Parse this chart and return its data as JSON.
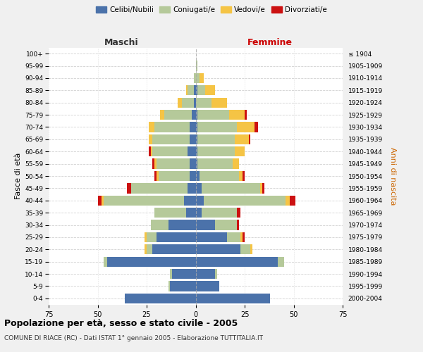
{
  "age_groups_bottom_to_top": [
    "0-4",
    "5-9",
    "10-14",
    "15-19",
    "20-24",
    "25-29",
    "30-34",
    "35-39",
    "40-44",
    "45-49",
    "50-54",
    "55-59",
    "60-64",
    "65-69",
    "70-74",
    "75-79",
    "80-84",
    "85-89",
    "90-94",
    "95-99",
    "100+"
  ],
  "birth_years_bottom_to_top": [
    "2000-2004",
    "1995-1999",
    "1990-1994",
    "1985-1989",
    "1980-1984",
    "1975-1979",
    "1970-1974",
    "1965-1969",
    "1960-1964",
    "1955-1959",
    "1950-1954",
    "1945-1949",
    "1940-1944",
    "1935-1939",
    "1930-1934",
    "1925-1929",
    "1920-1924",
    "1915-1919",
    "1910-1914",
    "1905-1909",
    "≤ 1904"
  ],
  "colors": {
    "celibe": "#4b72aa",
    "coniugato": "#b5c99a",
    "vedovo": "#f5c445",
    "divorziato": "#cc1111"
  },
  "maschi_bottom_to_top": {
    "celibe": [
      36,
      13,
      12,
      45,
      22,
      20,
      14,
      5,
      6,
      4,
      3,
      3,
      4,
      3,
      3,
      2,
      1,
      1,
      0,
      0,
      0
    ],
    "coniugato": [
      0,
      1,
      1,
      2,
      3,
      5,
      9,
      16,
      41,
      29,
      16,
      17,
      18,
      19,
      18,
      14,
      6,
      3,
      1,
      0,
      0
    ],
    "vedovo": [
      0,
      0,
      0,
      0,
      1,
      1,
      0,
      0,
      1,
      0,
      1,
      1,
      1,
      2,
      3,
      2,
      2,
      1,
      0,
      0,
      0
    ],
    "divorziato": [
      0,
      0,
      0,
      0,
      0,
      0,
      0,
      0,
      2,
      2,
      1,
      1,
      1,
      0,
      0,
      0,
      0,
      0,
      0,
      0,
      0
    ]
  },
  "femmine_bottom_to_top": {
    "nubile": [
      38,
      12,
      10,
      42,
      23,
      16,
      10,
      3,
      4,
      3,
      2,
      1,
      1,
      1,
      1,
      1,
      0,
      1,
      0,
      0,
      0
    ],
    "coniugata": [
      0,
      0,
      1,
      3,
      5,
      7,
      11,
      18,
      42,
      30,
      20,
      18,
      19,
      19,
      20,
      16,
      8,
      4,
      2,
      1,
      0
    ],
    "vedova": [
      0,
      0,
      0,
      0,
      1,
      1,
      0,
      0,
      2,
      1,
      2,
      3,
      5,
      7,
      9,
      8,
      8,
      5,
      2,
      0,
      0
    ],
    "divorziata": [
      0,
      0,
      0,
      0,
      0,
      1,
      1,
      2,
      3,
      1,
      1,
      0,
      0,
      1,
      2,
      1,
      0,
      0,
      0,
      0,
      0
    ]
  },
  "xlim": 75,
  "title": "Popolazione per età, sesso e stato civile - 2005",
  "subtitle": "COMUNE DI RIACE (RC) - Dati ISTAT 1° gennaio 2005 - Elaborazione TUTTITALIA.IT",
  "label_maschi": "Maschi",
  "label_femmine": "Femmine",
  "ylabel_left": "Fasce di età",
  "ylabel_right": "Anni di nascita",
  "bg_color": "#f0f0f0",
  "plot_bg": "#ffffff",
  "grid_color": "#cccccc",
  "legend_labels": [
    "Celibi/Nubili",
    "Coniugati/e",
    "Vedovi/e",
    "Divorziati/e"
  ]
}
